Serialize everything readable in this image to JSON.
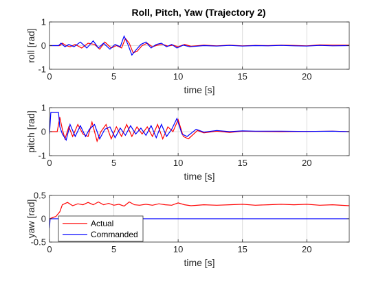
{
  "figure_title": "Roll, Pitch, Yaw (Trajectory 2)",
  "legend": {
    "entries": [
      {
        "label": "Actual",
        "color": "#ff0000"
      },
      {
        "label": "Commanded",
        "color": "#0000ff"
      }
    ]
  },
  "colors": {
    "actual": "#ff0000",
    "commanded": "#0000ff",
    "grid": "#dcdcdc",
    "axis": "#262626"
  },
  "chart_data": [
    {
      "type": "line",
      "title": "Roll, Pitch, Yaw (Trajectory 2)",
      "xlabel": "time [s]",
      "ylabel": "roll [rad]",
      "xlim": [
        0,
        23.3
      ],
      "ylim": [
        -1,
        1
      ],
      "xticks": [
        0,
        5,
        10,
        15,
        20
      ],
      "yticks": [
        -1,
        0,
        1
      ],
      "grid": true,
      "series": [
        {
          "name": "Actual",
          "color": "#ff0000",
          "x": [
            0,
            0.8,
            1.0,
            1.3,
            1.6,
            2.0,
            2.5,
            3.0,
            3.5,
            3.9,
            4.3,
            4.8,
            5.2,
            5.6,
            5.9,
            6.2,
            6.5,
            6.8,
            7.2,
            7.6,
            8.0,
            8.4,
            8.8,
            9.2,
            9.6,
            10.0,
            10.5,
            11.0,
            12,
            13,
            14,
            15,
            16,
            17,
            18,
            19,
            20,
            21,
            22,
            23.3
          ],
          "y": [
            0,
            0,
            0.1,
            0.0,
            -0.05,
            0.05,
            -0.1,
            0.1,
            0.05,
            -0.15,
            0.15,
            -0.1,
            0.0,
            -0.1,
            0.3,
            0.1,
            -0.3,
            -0.25,
            0.0,
            0.1,
            -0.05,
            0.02,
            0.05,
            -0.02,
            0.02,
            -0.05,
            0.05,
            -0.03,
            0.02,
            -0.01,
            0.02,
            -0.01,
            0.01,
            0.0,
            0.02,
            0.01,
            -0.01,
            0.03,
            0.02,
            0.02
          ]
        },
        {
          "name": "Commanded",
          "color": "#0000ff",
          "x": [
            0,
            0.7,
            0.9,
            1.2,
            1.5,
            1.9,
            2.4,
            2.9,
            3.4,
            3.8,
            4.2,
            4.7,
            5.1,
            5.5,
            5.8,
            6.1,
            6.4,
            6.7,
            7.1,
            7.5,
            7.9,
            8.3,
            8.7,
            9.1,
            9.5,
            9.9,
            10.4,
            10.9,
            12,
            13,
            14,
            15,
            16,
            17,
            18,
            19,
            20,
            21,
            22,
            23.3
          ],
          "y": [
            0,
            0,
            0.1,
            -0.05,
            0.05,
            -0.05,
            0.15,
            -0.1,
            0.2,
            -0.1,
            0.1,
            -0.15,
            0.05,
            -0.05,
            0.4,
            0.05,
            -0.4,
            -0.2,
            0.05,
            0.15,
            -0.1,
            0.05,
            0.1,
            -0.05,
            0.05,
            -0.1,
            0.02,
            -0.05,
            0.0,
            -0.02,
            0.01,
            -0.02,
            0.0,
            -0.01,
            0.01,
            -0.01,
            -0.02,
            0.01,
            -0.01,
            0.0
          ]
        }
      ]
    },
    {
      "type": "line",
      "xlabel": "time [s]",
      "ylabel": "pitch [rad]",
      "xlim": [
        0,
        23.3
      ],
      "ylim": [
        -1,
        1
      ],
      "xticks": [
        0,
        5,
        10,
        15,
        20
      ],
      "yticks": [
        -1,
        0,
        1
      ],
      "grid": true,
      "series": [
        {
          "name": "Actual",
          "color": "#ff0000",
          "x": [
            0,
            0.6,
            0.8,
            1.0,
            1.2,
            1.5,
            1.8,
            2.2,
            2.6,
            3.0,
            3.3,
            3.7,
            4.0,
            4.4,
            4.8,
            5.2,
            5.6,
            6.0,
            6.4,
            6.8,
            7.2,
            7.6,
            8.0,
            8.4,
            8.8,
            9.2,
            9.6,
            10.0,
            10.4,
            10.8,
            11.5,
            12,
            13,
            14,
            15,
            16,
            18,
            20,
            22,
            23.3
          ],
          "y": [
            0,
            0,
            0.6,
            0.1,
            -0.3,
            0.2,
            -0.2,
            0.3,
            -0.1,
            -0.2,
            0.4,
            -0.4,
            0.0,
            0.3,
            -0.3,
            0.2,
            -0.2,
            0.3,
            -0.2,
            0.2,
            -0.1,
            0.2,
            -0.2,
            0.3,
            -0.3,
            0.2,
            0.0,
            0.5,
            -0.2,
            -0.3,
            0.05,
            -0.05,
            0.02,
            -0.03,
            0.02,
            0.01,
            0.0,
            0.01,
            0.02,
            0.0
          ]
        },
        {
          "name": "Commanded",
          "color": "#0000ff",
          "x": [
            0,
            0.1,
            0.7,
            0.8,
            1.0,
            1.3,
            1.6,
            2.0,
            2.4,
            2.8,
            3.1,
            3.5,
            3.9,
            4.3,
            4.7,
            5.1,
            5.5,
            5.9,
            6.3,
            6.7,
            7.1,
            7.5,
            7.9,
            8.3,
            8.7,
            9.1,
            9.5,
            9.9,
            10.3,
            10.7,
            11.4,
            12,
            13,
            14,
            15,
            16,
            18,
            20,
            22,
            23.3
          ],
          "y": [
            -0.1,
            0.8,
            0.8,
            0.2,
            -0.1,
            -0.35,
            0.3,
            -0.2,
            0.25,
            -0.2,
            0.1,
            0.3,
            -0.3,
            0.1,
            0.2,
            -0.25,
            0.15,
            -0.15,
            0.25,
            -0.1,
            0.15,
            -0.15,
            0.25,
            -0.25,
            0.3,
            -0.2,
            0.1,
            0.55,
            -0.1,
            -0.2,
            0.1,
            -0.02,
            0.05,
            0.0,
            0.03,
            0.02,
            0.02,
            0.01,
            0.02,
            0.0
          ]
        }
      ]
    },
    {
      "type": "line",
      "xlabel": "time [s]",
      "ylabel": "yaw [rad]",
      "xlim": [
        0,
        23.3
      ],
      "ylim": [
        -0.5,
        0.5
      ],
      "xticks": [
        0,
        5,
        10,
        15,
        20
      ],
      "yticks": [
        -0.5,
        0,
        0.5
      ],
      "grid": true,
      "legend": "bottom-left",
      "series": [
        {
          "name": "Actual",
          "color": "#ff0000",
          "x": [
            0,
            0.5,
            0.8,
            1.0,
            1.4,
            1.8,
            2.2,
            2.6,
            3.0,
            3.4,
            3.8,
            4.2,
            4.6,
            5.0,
            5.4,
            5.8,
            6.2,
            6.6,
            7.0,
            7.5,
            8.0,
            8.5,
            9.0,
            9.5,
            10.0,
            10.5,
            11,
            12,
            13,
            14,
            15,
            16,
            17,
            18,
            19,
            20,
            21,
            22,
            23.3
          ],
          "y": [
            0.0,
            0.05,
            0.15,
            0.3,
            0.35,
            0.28,
            0.32,
            0.3,
            0.35,
            0.3,
            0.36,
            0.3,
            0.33,
            0.29,
            0.31,
            0.27,
            0.36,
            0.3,
            0.29,
            0.31,
            0.29,
            0.32,
            0.3,
            0.29,
            0.34,
            0.3,
            0.28,
            0.3,
            0.29,
            0.3,
            0.31,
            0.29,
            0.3,
            0.31,
            0.3,
            0.31,
            0.29,
            0.3,
            0.28
          ]
        },
        {
          "name": "Commanded",
          "color": "#0000ff",
          "x": [
            0,
            0.05,
            23.3
          ],
          "y": [
            -0.2,
            0.0,
            0.0
          ]
        }
      ]
    }
  ]
}
